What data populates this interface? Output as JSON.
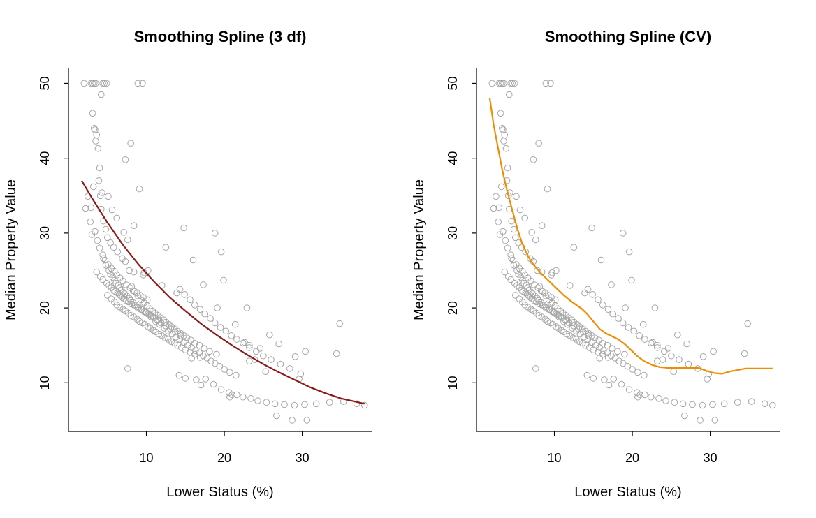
{
  "chart_data": [
    {
      "type": "scatter",
      "title": "Smoothing Spline (3 df)",
      "xlabel": "Lower Status (%)",
      "ylabel": "Median Property Value",
      "xlim": [
        0,
        39
      ],
      "ylim": [
        3.5,
        52
      ],
      "xticks": [
        10,
        20,
        30
      ],
      "yticks": [
        10,
        20,
        30,
        40,
        50
      ],
      "grid": false,
      "point_color": "#a6a6a6",
      "points_x": [
        2.0,
        2.9,
        3.1,
        3.3,
        3.5,
        4.4,
        4.6,
        4.9,
        8.9,
        9.5,
        2.5,
        2.9,
        3.2,
        3.4,
        3.6,
        3.8,
        4.0,
        4.3,
        5.1,
        5.6,
        6.2,
        7.1,
        7.6,
        3.1,
        3.3,
        3.5,
        3.9,
        4.1,
        4.2,
        4.5,
        4.8,
        5.0,
        5.4,
        5.8,
        6.3,
        6.9,
        7.3,
        7.8,
        8.4,
        9.6,
        2.2,
        2.8,
        3.4,
        3.7,
        4.0,
        4.4,
        4.7,
        5.1,
        5.5,
        5.9,
        6.2,
        6.6,
        7.0,
        7.4,
        7.9,
        8.3,
        8.8,
        9.2,
        9.6,
        10.1,
        3.6,
        4.1,
        4.4,
        4.9,
        5.2,
        5.5,
        5.8,
        6.0,
        6.3,
        6.5,
        6.7,
        6.9,
        7.1,
        7.4,
        7.7,
        8.1,
        8.5,
        8.9,
        9.3,
        9.7,
        10.2,
        10.6,
        11.1,
        11.6,
        12.3,
        4.5,
        4.8,
        5.2,
        5.4,
        5.7,
        5.9,
        6.1,
        6.4,
        6.6,
        6.8,
        7.0,
        7.2,
        7.5,
        7.8,
        8.0,
        8.3,
        8.6,
        9.0,
        9.4,
        9.9,
        10.4,
        10.9,
        11.4,
        11.9,
        12.5,
        13.1,
        13.7,
        14.4,
        5.0,
        5.5,
        5.9,
        6.2,
        6.6,
        7.0,
        7.3,
        7.7,
        8.0,
        8.4,
        8.8,
        9.1,
        9.5,
        9.8,
        10.2,
        10.5,
        10.9,
        11.2,
        11.6,
        12.0,
        12.4,
        12.8,
        13.2,
        13.6,
        14.0,
        14.5,
        15.0,
        15.6,
        16.2,
        16.9,
        7.6,
        8.1,
        8.5,
        8.9,
        9.3,
        9.7,
        10.1,
        10.4,
        10.8,
        11.1,
        11.5,
        11.8,
        12.2,
        12.5,
        12.9,
        13.2,
        13.6,
        14.0,
        14.4,
        14.8,
        15.2,
        15.7,
        16.2,
        16.8,
        17.4,
        18.1,
        19.0,
        10.0,
        10.6,
        11.2,
        11.7,
        12.3,
        12.8,
        13.3,
        13.8,
        14.3,
        14.8,
        15.3,
        15.8,
        16.3,
        16.8,
        17.3,
        17.8,
        18.3,
        18.8,
        19.4,
        20.0,
        20.7,
        21.5,
        14.3,
        14.9,
        15.6,
        16.2,
        16.9,
        17.5,
        18.2,
        18.8,
        19.5,
        20.2,
        20.9,
        21.6,
        22.4,
        23.2,
        24.1,
        25.0,
        26.0,
        27.2,
        28.4,
        29.8,
        15.0,
        16.4,
        17.6,
        18.6,
        19.6,
        20.6,
        21.6,
        22.4,
        23.4,
        24.3,
        25.4,
        26.5,
        27.7,
        29.0,
        30.3,
        31.8,
        33.5,
        35.3,
        38.0,
        21.4,
        22.6,
        23.2,
        24.6,
        25.8,
        27.0,
        29.1,
        30.4,
        34.4,
        8.0,
        10.2,
        18.8,
        19.6,
        22.9,
        17.3,
        13.9,
        3.0,
        4.2,
        7.3,
        8.4,
        9.1,
        9.7,
        12.0,
        14.8,
        12.5,
        16.0,
        26.7,
        28.7,
        29.6,
        30.6,
        34.8,
        37.0,
        19.9,
        20.7,
        23.9,
        25.3,
        21.0,
        23.2,
        19.1,
        17.0,
        15.8,
        14.2
      ],
      "points_y": [
        50.0,
        50.0,
        50.0,
        50.0,
        50.0,
        50.0,
        50.0,
        50.0,
        50.0,
        50.0,
        34.9,
        33.4,
        36.2,
        43.8,
        43.1,
        41.3,
        38.7,
        35.4,
        34.9,
        33.1,
        32.0,
        30.1,
        29.1,
        46.0,
        44.0,
        42.3,
        37.0,
        35.0,
        33.2,
        31.6,
        30.5,
        29.4,
        28.7,
        28.1,
        27.5,
        26.6,
        26.2,
        25.0,
        24.8,
        24.4,
        33.3,
        31.5,
        30.2,
        29.0,
        28.0,
        27.1,
        26.4,
        25.8,
        25.3,
        24.9,
        24.4,
        24.0,
        23.6,
        23.1,
        22.7,
        22.3,
        22.0,
        21.7,
        21.4,
        21.1,
        24.8,
        24.2,
        23.8,
        23.3,
        23.0,
        22.7,
        22.4,
        22.2,
        22.0,
        21.8,
        21.6,
        21.4,
        21.2,
        21.0,
        20.8,
        20.5,
        20.3,
        20.0,
        19.8,
        19.5,
        19.2,
        19.0,
        18.7,
        18.4,
        18.0,
        26.6,
        25.7,
        25.0,
        24.5,
        24.1,
        23.7,
        23.3,
        23.0,
        22.7,
        22.4,
        22.1,
        21.9,
        21.6,
        21.3,
        21.0,
        20.7,
        20.4,
        20.1,
        19.8,
        19.4,
        19.1,
        18.7,
        18.4,
        18.0,
        17.6,
        17.2,
        16.8,
        16.3,
        21.7,
        21.2,
        20.8,
        20.4,
        20.1,
        19.8,
        19.6,
        19.3,
        19.0,
        18.8,
        18.5,
        18.2,
        18.0,
        17.8,
        17.5,
        17.3,
        17.0,
        16.8,
        16.5,
        16.3,
        16.0,
        15.8,
        15.5,
        15.3,
        15.0,
        14.7,
        14.4,
        14.1,
        13.8,
        13.4,
        11.9,
        22.9,
        22.2,
        21.6,
        21.1,
        20.7,
        20.3,
        19.9,
        19.6,
        19.3,
        19.0,
        18.7,
        18.4,
        18.1,
        17.8,
        17.5,
        17.2,
        16.9,
        16.6,
        16.3,
        16.0,
        15.7,
        15.3,
        15.0,
        14.6,
        14.2,
        13.8,
        19.4,
        18.8,
        18.2,
        17.8,
        17.3,
        16.9,
        16.5,
        16.1,
        15.8,
        15.4,
        15.0,
        14.7,
        14.3,
        14.0,
        13.6,
        13.3,
        12.9,
        12.6,
        12.2,
        11.8,
        11.4,
        11.0,
        22.5,
        21.8,
        21.1,
        20.4,
        19.8,
        19.2,
        18.6,
        18.0,
        17.4,
        16.9,
        16.3,
        15.8,
        15.3,
        14.7,
        14.2,
        13.6,
        13.1,
        12.5,
        11.9,
        11.2,
        10.6,
        10.4,
        10.5,
        9.8,
        9.1,
        8.7,
        8.4,
        8.1,
        7.9,
        7.6,
        7.4,
        7.2,
        7.1,
        7.0,
        7.1,
        7.2,
        7.4,
        7.5,
        7.0,
        17.8,
        15.4,
        12.9,
        14.6,
        16.4,
        15.2,
        13.5,
        14.2,
        13.9,
        42.0,
        25.0,
        30.0,
        27.5,
        20.0,
        23.1,
        22.0,
        29.8,
        48.5,
        39.8,
        31.0,
        35.9,
        24.7,
        23.0,
        30.7,
        28.1,
        26.4,
        5.6,
        5.0,
        10.5,
        5.0,
        17.9,
        7.2,
        23.7,
        8.1,
        13.1,
        11.5,
        8.4,
        15.0,
        20.0,
        9.7,
        13.3,
        11.0
      ],
      "fit_color": "#8b1a1a",
      "fit": {
        "x": [
          1.7,
          3,
          5,
          7,
          9,
          11,
          13,
          15,
          17,
          19,
          21,
          23,
          25,
          27,
          29,
          31,
          33,
          35,
          38
        ],
        "y": [
          37.0,
          34.7,
          31.4,
          28.4,
          25.8,
          23.5,
          21.4,
          19.6,
          17.9,
          16.4,
          15.0,
          13.7,
          12.5,
          11.4,
          10.4,
          9.4,
          8.6,
          7.9,
          7.2
        ]
      }
    },
    {
      "type": "scatter",
      "title": "Smoothing Spline (CV)",
      "xlabel": "Lower Status (%)",
      "ylabel": "Median Property Value",
      "xlim": [
        0,
        39
      ],
      "ylim": [
        3.5,
        52
      ],
      "xticks": [
        10,
        20,
        30
      ],
      "yticks": [
        10,
        20,
        30,
        40,
        50
      ],
      "grid": false,
      "point_color": "#a6a6a6",
      "fit_color": "#f08c00",
      "fit": {
        "x": [
          1.7,
          2.2,
          2.8,
          3.3,
          3.8,
          4.3,
          4.8,
          5.3,
          5.8,
          6.3,
          6.8,
          7.3,
          7.8,
          8.3,
          8.8,
          9.3,
          9.8,
          10.5,
          11.2,
          12.0,
          12.8,
          13.5,
          14.2,
          15.0,
          15.8,
          16.6,
          17.4,
          18.2,
          19.0,
          19.8,
          20.6,
          21.5,
          22.5,
          23.5,
          24.5,
          25.5,
          27.0,
          28.5,
          29.5,
          30.5,
          31.5,
          32.5,
          33.5,
          34.5,
          35.5,
          36.5,
          38.0
        ],
        "y": [
          48.0,
          44.5,
          41.2,
          38.5,
          36.2,
          34.2,
          32.3,
          30.4,
          28.8,
          27.6,
          26.6,
          25.8,
          25.2,
          24.6,
          24.1,
          23.6,
          23.1,
          22.4,
          21.7,
          21.0,
          20.4,
          19.9,
          19.2,
          18.2,
          17.2,
          16.6,
          16.2,
          15.8,
          15.2,
          14.4,
          13.6,
          12.9,
          12.4,
          12.1,
          12.0,
          12.0,
          12.0,
          12.0,
          11.6,
          11.3,
          11.2,
          11.5,
          11.7,
          11.9,
          11.9,
          11.9,
          11.9
        ]
      }
    }
  ]
}
